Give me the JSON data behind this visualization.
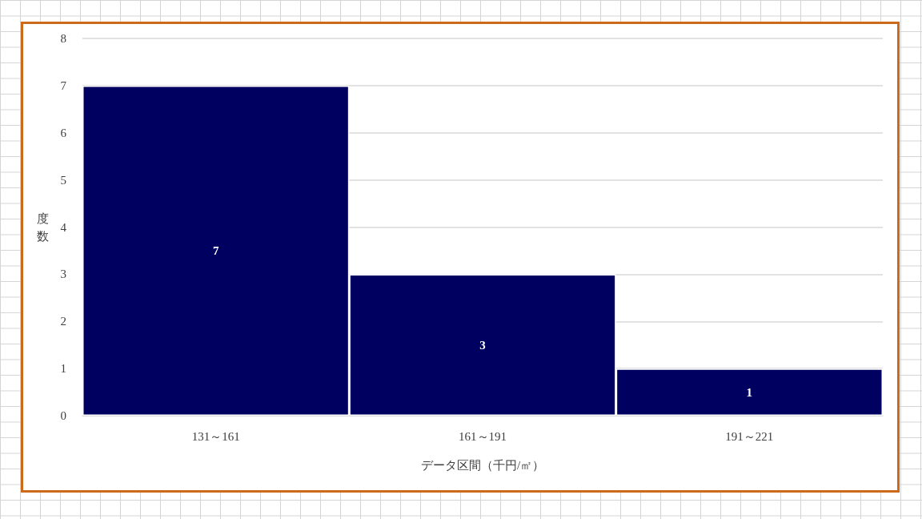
{
  "chart_data": {
    "type": "bar",
    "categories": [
      "131～161",
      "161～191",
      "191～221"
    ],
    "values": [
      7,
      3,
      1
    ],
    "color": "#000060",
    "xlabel": "データ区間（千円/㎡）",
    "ylabel": "度数",
    "ylim": [
      0,
      8
    ],
    "yticks": [
      0,
      1,
      2,
      3,
      4,
      5,
      6,
      7,
      8
    ],
    "grid": "y",
    "data_labels": true
  }
}
